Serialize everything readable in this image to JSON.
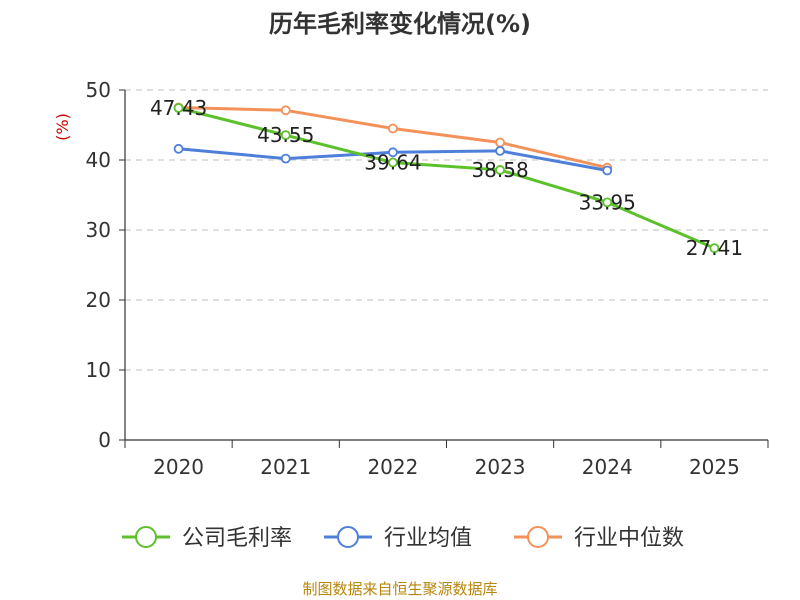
{
  "chart_data": {
    "type": "line",
    "title": "历年毛利率变化情况(%)",
    "ylabel": "(%)",
    "xlabel": "",
    "categories": [
      "2020",
      "2021",
      "2022",
      "2023",
      "2024",
      "2025"
    ],
    "ylim": [
      0,
      50
    ],
    "yticks": [
      "0",
      "10",
      "20",
      "30",
      "40",
      "50"
    ],
    "grid": true,
    "legend_position": "bottom",
    "series": [
      {
        "name": "公司毛利率",
        "color": "#5cc12b",
        "values": [
          47.43,
          43.55,
          39.64,
          38.58,
          33.95,
          27.41
        ],
        "labels": [
          "47.43",
          "43.55",
          "39.64",
          "38.58",
          "33.95",
          "27.41"
        ]
      },
      {
        "name": "行业均值",
        "color": "#4e7fd9",
        "values": [
          41.6,
          40.2,
          41.1,
          41.3,
          38.5,
          null
        ]
      },
      {
        "name": "行业中位数",
        "color": "#f2925a",
        "values": [
          47.5,
          47.1,
          44.5,
          42.5,
          38.9,
          null
        ]
      }
    ],
    "source": "制图数据来自恒生聚源数据库"
  }
}
